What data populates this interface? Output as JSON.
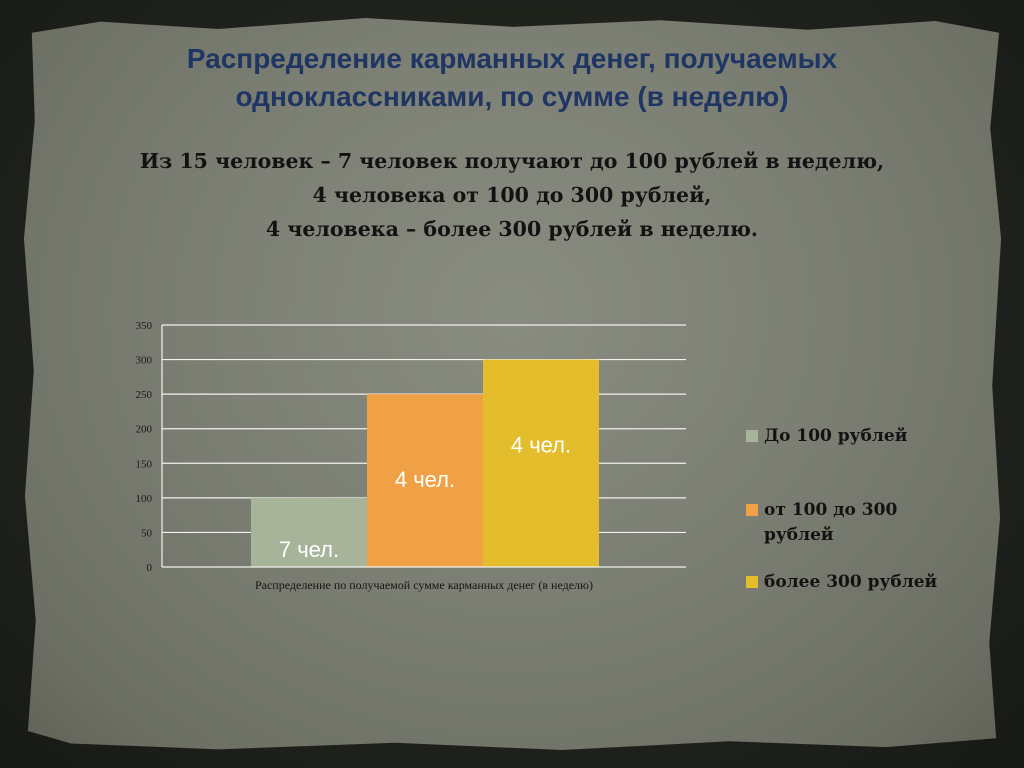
{
  "title": {
    "line1": "Распределение карманных денег, получаемых",
    "line2": "одноклассниками, по сумме (в неделю)"
  },
  "intro": {
    "line1": "Из 15 человек – 7 человек получают до 100 рублей в неделю,",
    "line2": "4 человека от 100 до 300 рублей,",
    "line3": "4 человека – более 300 рублей в неделю."
  },
  "chart_data": {
    "type": "bar",
    "xlabel": "Распределение по получаемой сумме карманных денег (в неделю)",
    "ylabel": "",
    "ylim": [
      0,
      350
    ],
    "yticks": [
      0,
      50,
      100,
      150,
      200,
      250,
      300,
      350
    ],
    "grid": true,
    "legend_position": "right",
    "series": [
      {
        "name": "До 100 рублей",
        "value": 100,
        "label": "7 чел.",
        "color": "#a7b49a"
      },
      {
        "name": "от 100 до 300 рублей",
        "value": 250,
        "label": "4 чел.",
        "color": "#f0a145"
      },
      {
        "name": "более 300 рублей",
        "value": 300,
        "label": "4 чел.",
        "color": "#e3bd2c"
      }
    ]
  }
}
